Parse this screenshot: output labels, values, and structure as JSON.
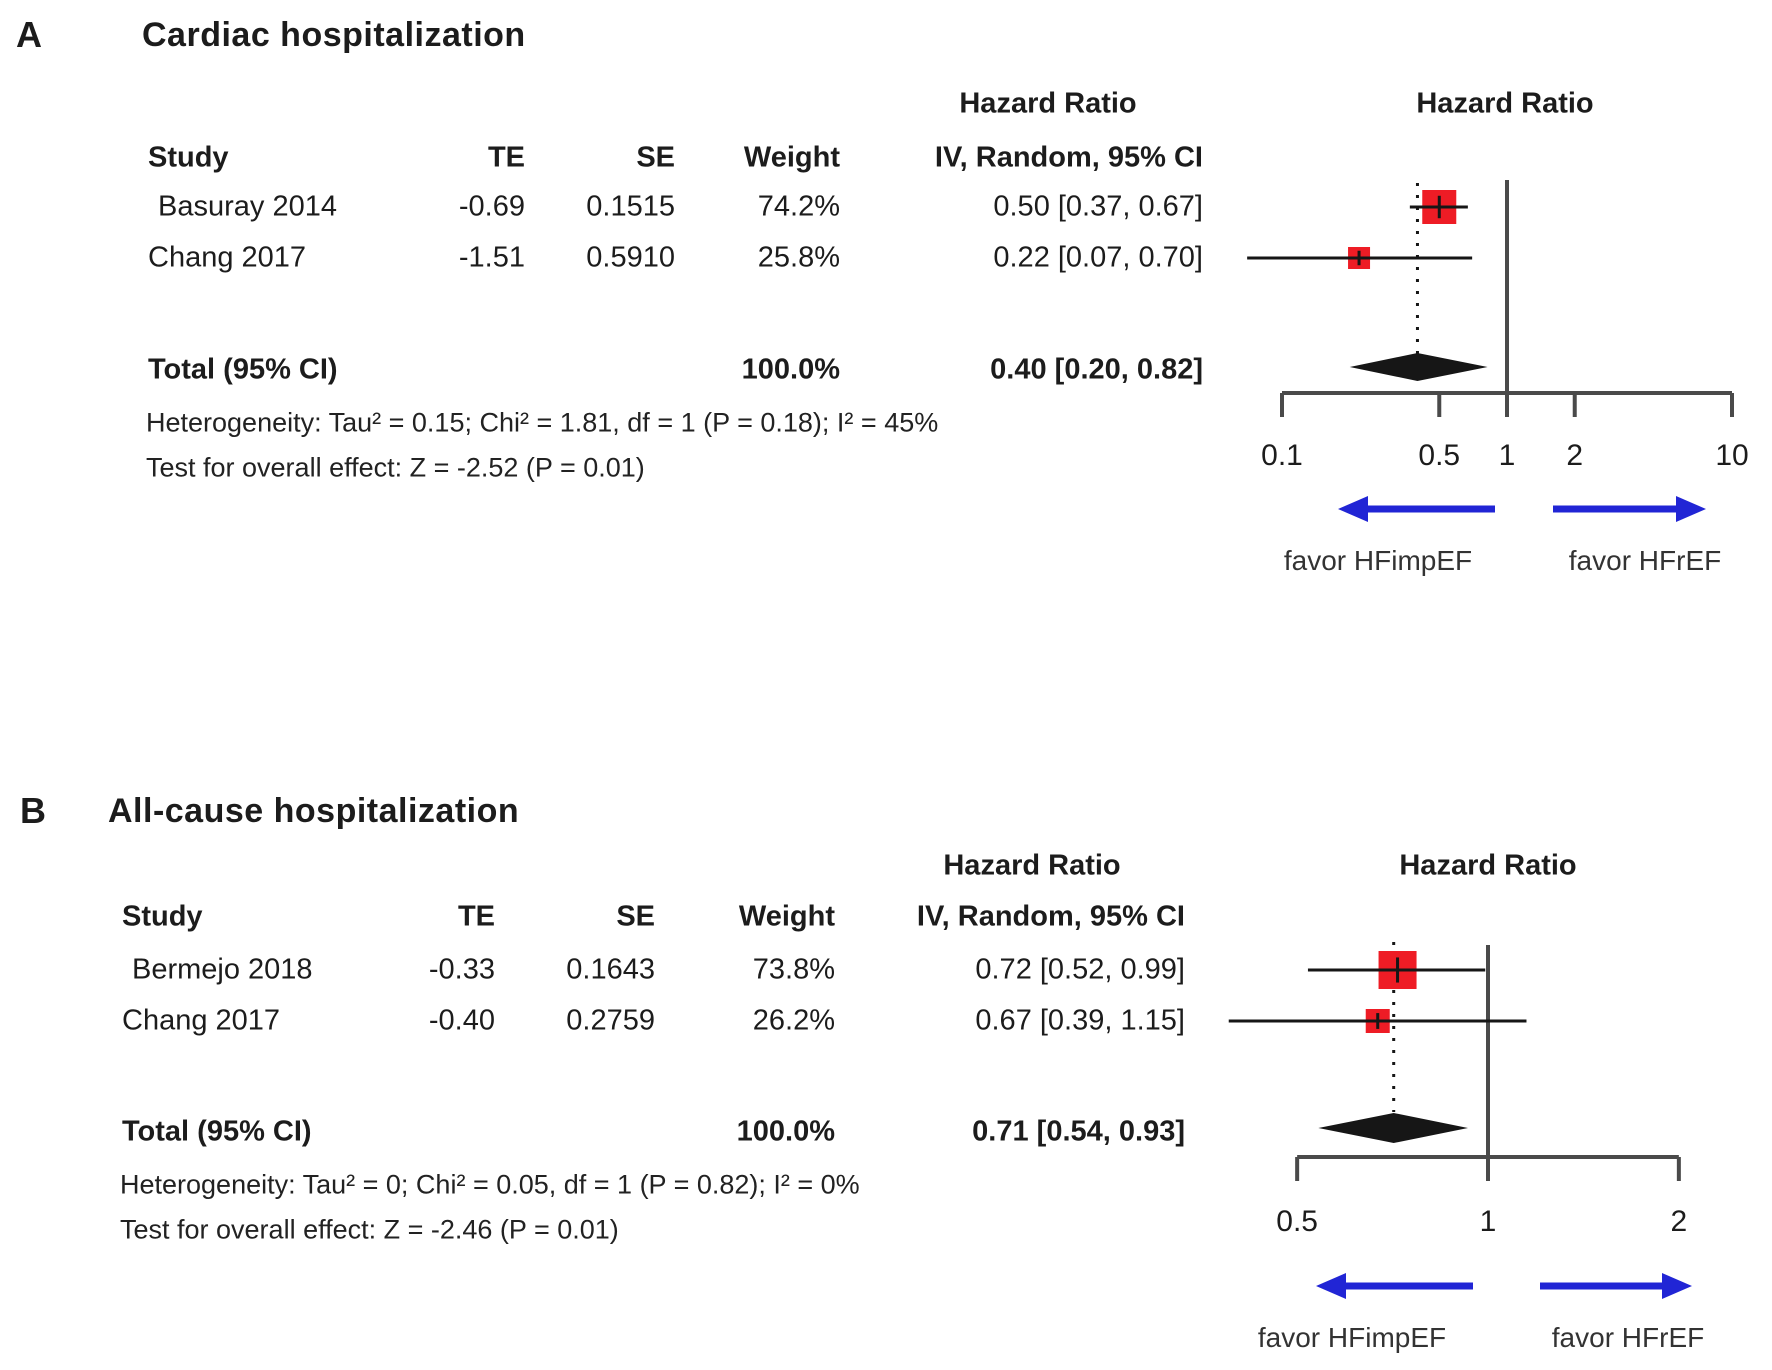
{
  "figure": {
    "panels": [
      {
        "label": "A",
        "title": "Cardiac hospitalization",
        "hazard_ratio_header": "Hazard Ratio",
        "columns": {
          "study": "Study",
          "te": "TE",
          "se": "SE",
          "weight": "Weight",
          "ci": "IV, Random, 95% CI"
        },
        "rows": [
          {
            "study": "Basuray 2014",
            "te": "-0.69",
            "se": "0.1515",
            "weight": "74.2%",
            "ci_text": "0.50 [0.37, 0.67]"
          },
          {
            "study": "Chang 2017",
            "te": "-1.51",
            "se": "0.5910",
            "weight": "25.8%",
            "ci_text": "0.22 [0.07, 0.70]"
          }
        ],
        "total_label": "Total (95% CI)",
        "total_weight": "100.0%",
        "total_ci_text": "0.40 [0.20, 0.82]",
        "heterogeneity": "Heterogeneity: Tau² = 0.15; Chi² = 1.81, df = 1 (P = 0.18); I² = 45%",
        "overall_effect": "Test for overall effect: Z = -2.52 (P = 0.01)",
        "arrow_left_label": "favor HFimpEF",
        "arrow_right_label": "favor HFrEF"
      },
      {
        "label": "B",
        "title": "All-cause hospitalization",
        "hazard_ratio_header": "Hazard Ratio",
        "columns": {
          "study": "Study",
          "te": "TE",
          "se": "SE",
          "weight": "Weight",
          "ci": "IV, Random, 95% CI"
        },
        "rows": [
          {
            "study": "Bermejo 2018",
            "te": "-0.33",
            "se": "0.1643",
            "weight": "73.8%",
            "ci_text": "0.72 [0.52, 0.99]"
          },
          {
            "study": "Chang 2017",
            "te": "-0.40",
            "se": "0.2759",
            "weight": "26.2%",
            "ci_text": "0.67 [0.39, 1.15]"
          }
        ],
        "total_label": "Total (95% CI)",
        "total_weight": "100.0%",
        "total_ci_text": "0.71 [0.54, 0.93]",
        "heterogeneity": "Heterogeneity: Tau² = 0; Chi² = 0.05, df = 1 (P = 0.82); I² = 0%",
        "overall_effect": "Test for overall effect: Z = -2.46 (P = 0.01)",
        "arrow_left_label": "favor HFimpEF",
        "arrow_right_label": "favor HFrEF"
      }
    ]
  },
  "colors": {
    "square_red": "#ee1c25",
    "arrow_blue": "#2125d5",
    "axis_gray": "#4a4a4a",
    "ink_black": "#161616"
  },
  "chart_data": [
    {
      "type": "forest",
      "title": "Cardiac hospitalization",
      "effect_measure": "Hazard Ratio",
      "model": "IV, Random, 95% CI",
      "x_scale": "log",
      "x_range": [
        0.1,
        10
      ],
      "x_ticks": [
        0.1,
        0.5,
        1,
        2,
        10
      ],
      "studies": [
        {
          "name": "Basuray 2014",
          "te": -0.69,
          "se": 0.1515,
          "weight_pct": 74.2,
          "hr": 0.5,
          "ci_low": 0.37,
          "ci_high": 0.67
        },
        {
          "name": "Chang 2017",
          "te": -1.51,
          "se": 0.591,
          "weight_pct": 25.8,
          "hr": 0.22,
          "ci_low": 0.07,
          "ci_high": 0.7
        }
      ],
      "total": {
        "weight_pct": 100.0,
        "hr": 0.4,
        "ci_low": 0.2,
        "ci_high": 0.82
      },
      "heterogeneity": {
        "tau2": 0.15,
        "chi2": 1.81,
        "df": 1,
        "p": 0.18,
        "i2_pct": 45
      },
      "overall_effect": {
        "z": -2.52,
        "p": 0.01
      },
      "direction_labels": {
        "left": "favor HFimpEF",
        "right": "favor HFrEF"
      }
    },
    {
      "type": "forest",
      "title": "All-cause hospitalization",
      "effect_measure": "Hazard Ratio",
      "model": "IV, Random, 95% CI",
      "x_scale": "log",
      "x_range": [
        0.5,
        2
      ],
      "x_ticks": [
        0.5,
        1,
        2
      ],
      "studies": [
        {
          "name": "Bermejo 2018",
          "te": -0.33,
          "se": 0.1643,
          "weight_pct": 73.8,
          "hr": 0.72,
          "ci_low": 0.52,
          "ci_high": 0.99
        },
        {
          "name": "Chang 2017",
          "te": -0.4,
          "se": 0.2759,
          "weight_pct": 26.2,
          "hr": 0.67,
          "ci_low": 0.39,
          "ci_high": 1.15
        }
      ],
      "total": {
        "weight_pct": 100.0,
        "hr": 0.71,
        "ci_low": 0.54,
        "ci_high": 0.93
      },
      "heterogeneity": {
        "tau2": 0,
        "chi2": 0.05,
        "df": 1,
        "p": 0.82,
        "i2_pct": 0
      },
      "overall_effect": {
        "z": -2.46,
        "p": 0.01
      },
      "direction_labels": {
        "left": "favor HFimpEF",
        "right": "favor HFrEF"
      }
    }
  ]
}
